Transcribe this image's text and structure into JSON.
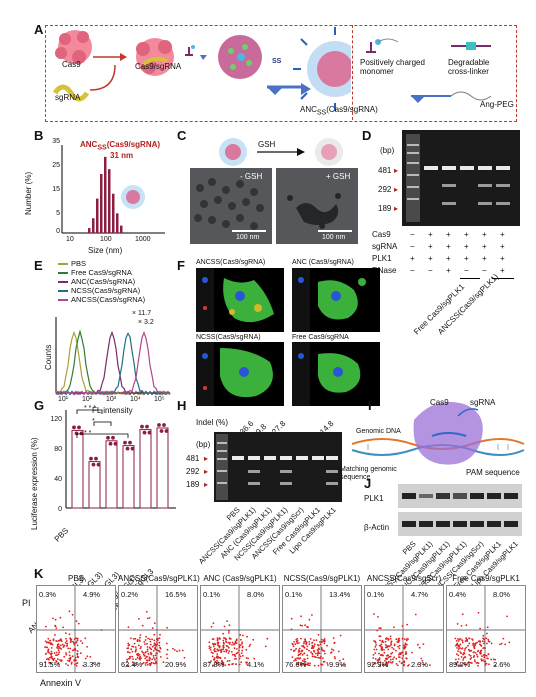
{
  "panel_letters": [
    "A",
    "B",
    "C",
    "D",
    "E",
    "F",
    "G",
    "H",
    "I",
    "J",
    "K"
  ],
  "panelA": {
    "labels": {
      "cas9": "Cas9",
      "sgrna": "sgRNA",
      "complex": "Cas9/sgRNA",
      "ss": "SS",
      "anc": "ANC",
      "anc_sub": "SS",
      "anc_tail": "(Cas9/sgRNA)"
    },
    "legend": {
      "monomer": "Positively charged monomer",
      "crosslinker": "Degradable cross-linker",
      "angpeg": "Ang-PEG"
    }
  },
  "panelB": {
    "title": "ANC",
    "title_sub": "SS",
    "title_tail": "(Cas9/sgRNA)",
    "size_label": "31 nm",
    "ylabel": "Number (%)",
    "xlabel": "Size (nm)",
    "yticks": [
      "0",
      "5",
      "10",
      "15",
      "20",
      "25",
      "30",
      "35"
    ],
    "xticks": [
      "10",
      "100",
      "1000"
    ]
  },
  "panelC": {
    "gsh": "GSH",
    "minus": "- GSH",
    "plus": "+ GSH",
    "scale1": "100 nm",
    "scale2": "100 nm"
  },
  "panelD": {
    "bp_label": "(bp)",
    "bands": [
      "481",
      "292",
      "189"
    ],
    "rows": [
      {
        "name": "Cas9",
        "vals": [
          "−",
          "+",
          "+",
          "+",
          "+",
          "+"
        ]
      },
      {
        "name": "sgRNA",
        "vals": [
          "−",
          "+",
          "+",
          "+",
          "+",
          "+"
        ]
      },
      {
        "name": "PLK1",
        "vals": [
          "+",
          "+",
          "+",
          "+",
          "+",
          "+"
        ]
      },
      {
        "name": "RNase",
        "vals": [
          "−",
          "−",
          "+",
          "−",
          "−",
          "+"
        ]
      }
    ],
    "groups": [
      "Free Cas9/sgPLK1",
      "ANCSS(Cas9/sgPLK1)"
    ]
  },
  "panelE": {
    "legend": [
      "PBS",
      "Free Cas9/sgRNA",
      "ANC(Cas9/sgRNA)",
      "NCSS(Cas9/sgRNA)",
      "ANCSS(Cas9/sgRNA)"
    ],
    "colors": [
      "#a8a234",
      "#2e7d32",
      "#7b2a6e",
      "#1f6f88",
      "#b0468c"
    ],
    "fold1": "× 11.7",
    "fold2": "× 3.2",
    "ylabel": "Counts",
    "xlabel": "FL intensity",
    "xticks": [
      "10¹",
      "10²",
      "10³",
      "10⁴",
      "10⁵"
    ]
  },
  "panelF": {
    "labels": [
      "ANCSS(Cas9/sgRNA)",
      "ANC (Cas9/sgRNA)",
      "NCSS(Cas9/sgRNA)",
      "Free Cas9/sgRNA"
    ]
  },
  "panelG": {
    "ylabel": "Luciferase expression (%)",
    "yticks": [
      "0",
      "20",
      "40",
      "60",
      "80",
      "100",
      "120"
    ],
    "categories": [
      "PBS",
      "ANCSS(Cas9/sgGL3)",
      "ANC (Cas9/sgGL3)",
      "NCSS(Cas9/sgGL3)",
      "ANCSS(Cas9/sgScr)",
      "Free Cas9/sgGL3"
    ],
    "values": [
      97,
      58,
      84,
      78,
      98,
      100
    ],
    "sig": [
      "* * *",
      "*",
      "* *"
    ]
  },
  "panelH": {
    "indel_label": "Indel (%)",
    "indel": [
      "36.6",
      "9.8",
      "27.8",
      "14.8"
    ],
    "bp_label": "(bp)",
    "bands": [
      "481",
      "292",
      "189"
    ],
    "lanes": [
      "PBS",
      "ANCSS(Cas9/sgPLK1)",
      "ANC (Cas9/sgPLK1)",
      "NCSS(Cas9/sgPLK1)",
      "ANCSS(Cas9/sgScr)",
      "Free Cas9/sgPLK1",
      "Lipo Cas9/sgPLK1"
    ]
  },
  "panelI": {
    "cas9": "Cas9",
    "sgrna": "sgRNA",
    "genomic": "Genomic DNA",
    "matching": "Matching genomic sequence",
    "pam": "PAM sequence"
  },
  "panelJ": {
    "rows": [
      "PLK1",
      "β-Actin"
    ],
    "lanes": [
      "PBS",
      "ANCSS(Cas9/sgPLK1)",
      "ANC (Cas9/sgPLK1)",
      "NCSS(Cas9/sgPLK1)",
      "ANCSS(Cas9/sgScr)",
      "Free Cas9/sgPLK1",
      "Lipo Cas9/sgPLK1"
    ]
  },
  "panelK": {
    "ylabel": "PI",
    "xlabel": "Annexin V",
    "plots": [
      {
        "title": "PBS",
        "q": [
          "0.3%",
          "4.9%",
          "91.5%",
          "3.3%"
        ]
      },
      {
        "title": "ANCSS(Cas9/sgPLK1)",
        "q": [
          "0.2%",
          "16.5%",
          "62.4%",
          "20.9%"
        ]
      },
      {
        "title": "ANC (Cas9/sgPLK1)",
        "q": [
          "0.1%",
          "8.0%",
          "87.8%",
          "4.1%"
        ]
      },
      {
        "title": "NCSS(Cas9/sgPLK1)",
        "q": [
          "0.1%",
          "13.4%",
          "76.6%",
          "9.9%"
        ]
      },
      {
        "title": "ANCSS(Cas9/sgScr)",
        "q": [
          "0.1%",
          "4.7%",
          "92.9%",
          "2.3%"
        ]
      },
      {
        "title": "Free Cas9/sgPLK1",
        "q": [
          "0.4%",
          "8.0%",
          "89.0%",
          "2.6%"
        ]
      }
    ]
  }
}
